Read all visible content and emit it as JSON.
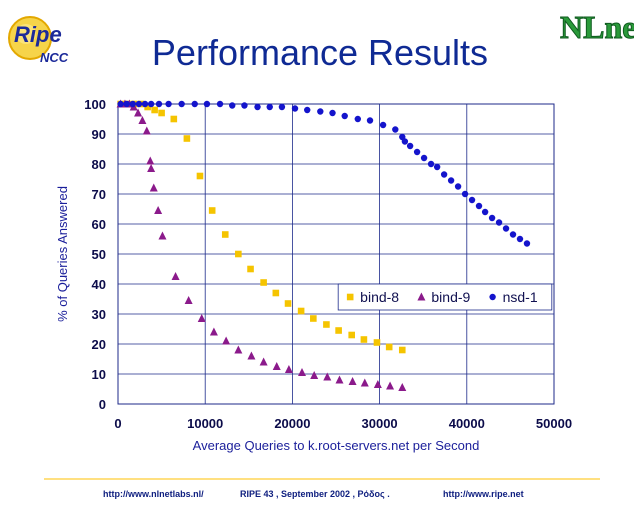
{
  "slide": {
    "title": "Performance Results",
    "logo_left": "Ripe",
    "logo_left_sub": "NCC",
    "logo_right": "NLnet",
    "footer": {
      "left": "http://www.nlnetlabs.nl/",
      "center": "RIPE 43 ,  September 2002 , Ρόδος .",
      "right": "http://www.ripe.net"
    }
  },
  "colors": {
    "title": "#0f2a94",
    "plot_background": "#ffffff",
    "gridline": "#1c2a8a",
    "bind8": "#f5c400",
    "bind9": "#8b1a8b",
    "nsd1": "#1414cc",
    "footer_rule": "#ffe080"
  },
  "chart_data": {
    "type": "scatter",
    "xlabel": "Average Queries to k.root-servers.net per Second",
    "ylabel": "% of Queries Answered",
    "xlim": [
      0,
      50000
    ],
    "ylim": [
      0,
      100
    ],
    "x_ticks": [
      "0",
      "10000",
      "20000",
      "30000",
      "40000",
      "50000"
    ],
    "y_ticks": [
      "0",
      "10",
      "20",
      "30",
      "40",
      "50",
      "60",
      "70",
      "80",
      "90",
      "100"
    ],
    "grid": true,
    "legend_position": "lower-right",
    "series": [
      {
        "name": "bind-8",
        "marker": "square",
        "color_key": "bind8",
        "points": [
          [
            300,
            100
          ],
          [
            1000,
            100
          ],
          [
            1800,
            100
          ],
          [
            2600,
            100
          ],
          [
            3400,
            99
          ],
          [
            4200,
            98
          ],
          [
            5000,
            97
          ],
          [
            6400,
            95
          ],
          [
            7900,
            88.5
          ],
          [
            9400,
            76
          ],
          [
            10800,
            64.5
          ],
          [
            12300,
            56.5
          ],
          [
            13800,
            50
          ],
          [
            15200,
            45
          ],
          [
            16700,
            40.5
          ],
          [
            18100,
            37
          ],
          [
            19500,
            33.5
          ],
          [
            21000,
            31
          ],
          [
            22400,
            28.5
          ],
          [
            23900,
            26.5
          ],
          [
            25300,
            24.5
          ],
          [
            26800,
            23
          ],
          [
            28200,
            21.5
          ],
          [
            29700,
            20.5
          ],
          [
            31100,
            19
          ],
          [
            32600,
            18
          ]
        ]
      },
      {
        "name": "bind-9",
        "marker": "triangle",
        "color_key": "bind9",
        "points": [
          [
            300,
            100
          ],
          [
            800,
            100
          ],
          [
            1300,
            100
          ],
          [
            1800,
            99
          ],
          [
            2300,
            97
          ],
          [
            2800,
            94.5
          ],
          [
            3300,
            91
          ],
          [
            3700,
            81
          ],
          [
            3800,
            78.5
          ],
          [
            4100,
            72
          ],
          [
            4600,
            64.5
          ],
          [
            5100,
            56
          ],
          [
            6600,
            42.5
          ],
          [
            8100,
            34.5
          ],
          [
            9600,
            28.5
          ],
          [
            11000,
            24
          ],
          [
            12400,
            21
          ],
          [
            13800,
            18
          ],
          [
            15300,
            16
          ],
          [
            16700,
            14
          ],
          [
            18200,
            12.5
          ],
          [
            19600,
            11.5
          ],
          [
            21100,
            10.5
          ],
          [
            22500,
            9.5
          ],
          [
            24000,
            9
          ],
          [
            25400,
            8
          ],
          [
            26900,
            7.5
          ],
          [
            28300,
            7
          ],
          [
            29800,
            6.5
          ],
          [
            31200,
            6
          ],
          [
            32600,
            5.5
          ]
        ]
      },
      {
        "name": "nsd-1",
        "marker": "circle",
        "color_key": "nsd1",
        "points": [
          [
            300,
            100
          ],
          [
            1000,
            100
          ],
          [
            1700,
            100
          ],
          [
            2400,
            100
          ],
          [
            3100,
            100
          ],
          [
            3800,
            100
          ],
          [
            4700,
            100
          ],
          [
            5800,
            100
          ],
          [
            7300,
            100
          ],
          [
            8800,
            100
          ],
          [
            10200,
            100
          ],
          [
            11700,
            100
          ],
          [
            13100,
            99.5
          ],
          [
            14500,
            99.5
          ],
          [
            16000,
            99
          ],
          [
            17400,
            99
          ],
          [
            18800,
            99
          ],
          [
            20300,
            98.5
          ],
          [
            21700,
            98
          ],
          [
            23200,
            97.5
          ],
          [
            24600,
            97
          ],
          [
            26000,
            96
          ],
          [
            27500,
            95
          ],
          [
            28900,
            94.5
          ],
          [
            30400,
            93
          ],
          [
            31800,
            91.5
          ],
          [
            32600,
            89
          ],
          [
            32900,
            87.5
          ],
          [
            33500,
            86
          ],
          [
            34300,
            84
          ],
          [
            35100,
            82
          ],
          [
            35900,
            80
          ],
          [
            36600,
            79
          ],
          [
            37400,
            76.5
          ],
          [
            38200,
            74.5
          ],
          [
            39000,
            72.5
          ],
          [
            39800,
            70
          ],
          [
            40600,
            68
          ],
          [
            41400,
            66
          ],
          [
            42100,
            64
          ],
          [
            42900,
            62
          ],
          [
            43700,
            60.5
          ],
          [
            44500,
            58.5
          ],
          [
            45300,
            56.5
          ],
          [
            46100,
            55
          ],
          [
            46900,
            53.5
          ]
        ]
      }
    ]
  }
}
